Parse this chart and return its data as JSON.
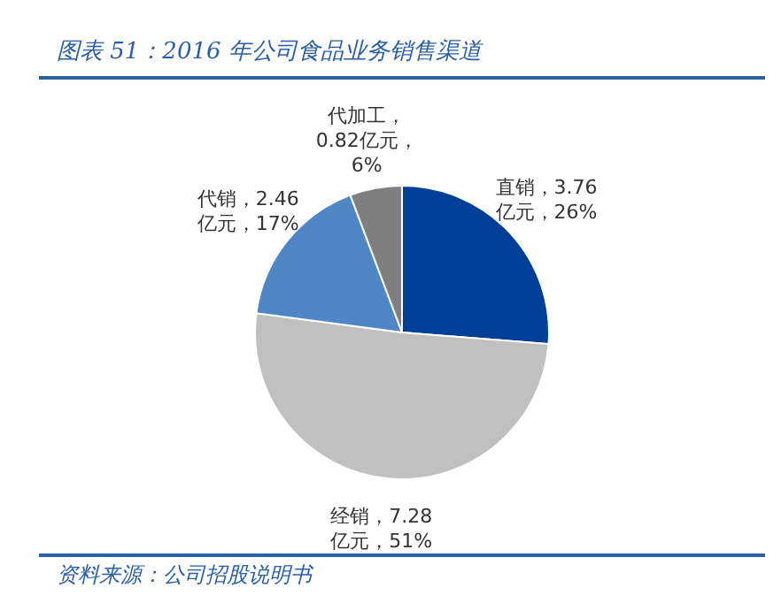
{
  "chart_data": {
    "type": "pie",
    "title": "图表 51：2016 年公司食品业务销售渠道",
    "categories": [
      "直销",
      "经销",
      "代销",
      "代加工"
    ],
    "values": [
      3.76,
      7.28,
      2.46,
      0.82
    ],
    "colors": [
      "#003f98",
      "#c0c0c0",
      "#4f86c6",
      "#7f7f7f"
    ],
    "value_labels": [
      "，3.76\n亿元，26%",
      "，7.28\n亿元，51%",
      "，2.46\n亿元，17%",
      "，\n0.82亿元，\n6%"
    ],
    "annotations": [
      "资料来源：公司招股说明书"
    ],
    "legend": false
  }
}
